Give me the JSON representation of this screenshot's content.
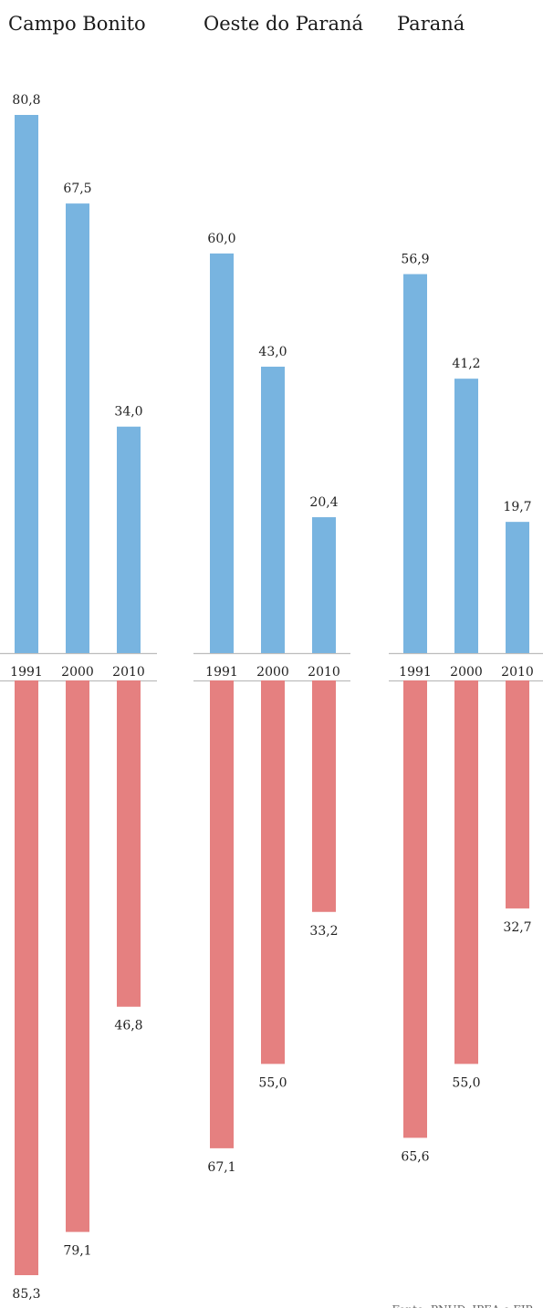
{
  "chart_data": {
    "type": "bar",
    "categories": [
      "1991",
      "2000",
      "2010"
    ],
    "panels": [
      {
        "title": "Campo Bonito",
        "series": [
          {
            "values": [
              80.8,
              67.5,
              34.0
            ],
            "labels": [
              "80,8",
              "67,5",
              "34,0"
            ],
            "color": "#78b4e0",
            "direction": "up"
          },
          {
            "values": [
              85.3,
              79.1,
              46.8
            ],
            "labels": [
              "85,3",
              "79,1",
              "46,8"
            ],
            "color": "#e58080",
            "direction": "down"
          }
        ]
      },
      {
        "title": "Oeste do Paraná",
        "series": [
          {
            "values": [
              60.0,
              43.0,
              20.4
            ],
            "labels": [
              "60,0",
              "43,0",
              "20,4"
            ],
            "color": "#78b4e0",
            "direction": "up"
          },
          {
            "values": [
              67.1,
              55.0,
              33.2
            ],
            "labels": [
              "67,1",
              "55,0",
              "33,2"
            ],
            "color": "#e58080",
            "direction": "down"
          }
        ]
      },
      {
        "title": "Paraná",
        "series": [
          {
            "values": [
              56.9,
              41.2,
              19.7
            ],
            "labels": [
              "56,9",
              "41,2",
              "19,7"
            ],
            "color": "#78b4e0",
            "direction": "up"
          },
          {
            "values": [
              65.6,
              55.0,
              32.7
            ],
            "labels": [
              "65,6",
              "55,0",
              "32,7"
            ],
            "color": "#e58080",
            "direction": "down"
          }
        ]
      }
    ],
    "ylim": [
      0,
      90
    ],
    "grid": false,
    "source": "Fonte: PNUD, IPEA e FJP."
  }
}
